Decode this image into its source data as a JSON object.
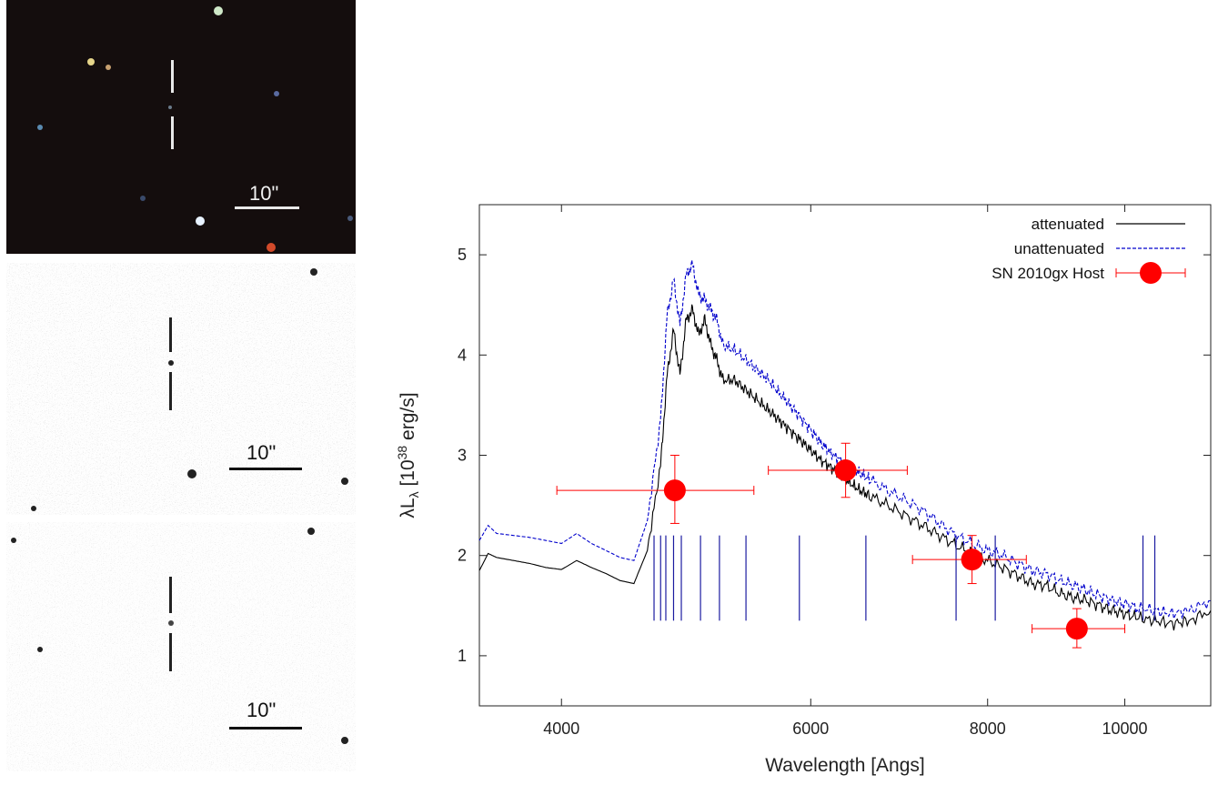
{
  "images": [
    {
      "scale_label": "10\"",
      "style": "color"
    },
    {
      "scale_label": "10\"",
      "style": "grayscale"
    },
    {
      "scale_label": "10\"",
      "style": "grayscale"
    }
  ],
  "chart_data": {
    "type": "line",
    "title": "",
    "xlabel": "Wavelength [Angs]",
    "ylabel_parts": {
      "pre": "λL",
      "sub": "λ",
      "mid": " [10",
      "sup": "38",
      "post": " erg/s]"
    },
    "x_scale": "log",
    "xlim": [
      3500,
      11500
    ],
    "ylim": [
      0.5,
      5.5
    ],
    "x_ticks": [
      4000,
      6000,
      8000,
      10000
    ],
    "y_ticks": [
      1,
      2,
      3,
      4,
      5
    ],
    "legend_position": "top-right",
    "series": [
      {
        "name": "attenuated",
        "style": "solid",
        "color": "#000000",
        "x": [
          3500,
          3550,
          3600,
          3700,
          3800,
          3900,
          4000,
          4100,
          4200,
          4300,
          4400,
          4500,
          4600,
          4700,
          4750,
          4800,
          4850,
          4900,
          4950,
          5000,
          5050,
          5100,
          5150,
          5200,
          5300,
          5400,
          5500,
          5600,
          5700,
          5800,
          5900,
          6000,
          6100,
          6200,
          6300,
          6400,
          6500,
          6600,
          6800,
          7000,
          7200,
          7400,
          7600,
          7800,
          8000,
          8200,
          8400,
          8600,
          8800,
          9000,
          9200,
          9400,
          9600,
          9800,
          10000,
          10200,
          10500,
          10800,
          11100,
          11500
        ],
        "y": [
          1.85,
          2.02,
          1.98,
          1.95,
          1.92,
          1.88,
          1.86,
          1.95,
          1.88,
          1.82,
          1.75,
          1.72,
          2.05,
          2.9,
          3.8,
          4.25,
          3.8,
          4.35,
          4.45,
          4.2,
          4.35,
          4.1,
          3.95,
          3.75,
          3.75,
          3.65,
          3.55,
          3.45,
          3.35,
          3.25,
          3.15,
          3.05,
          2.95,
          2.88,
          2.8,
          2.72,
          2.65,
          2.6,
          2.5,
          2.4,
          2.3,
          2.2,
          2.1,
          2.02,
          1.95,
          1.88,
          1.8,
          1.72,
          1.7,
          1.62,
          1.58,
          1.55,
          1.5,
          1.45,
          1.42,
          1.38,
          1.35,
          1.32,
          1.35,
          1.45
        ]
      },
      {
        "name": "unattenuated",
        "style": "dashed",
        "color": "#0000cc",
        "x": [
          3500,
          3550,
          3600,
          3700,
          3800,
          3900,
          4000,
          4100,
          4200,
          4300,
          4400,
          4500,
          4600,
          4700,
          4750,
          4800,
          4850,
          4900,
          4950,
          5000,
          5050,
          5100,
          5150,
          5200,
          5300,
          5400,
          5500,
          5600,
          5700,
          5800,
          5900,
          6000,
          6100,
          6200,
          6300,
          6400,
          6500,
          6600,
          6800,
          7000,
          7200,
          7400,
          7600,
          7800,
          8000,
          8200,
          8400,
          8600,
          8800,
          9000,
          9200,
          9400,
          9600,
          9800,
          10000,
          10200,
          10500,
          10800,
          11100,
          11500
        ],
        "y": [
          2.15,
          2.3,
          2.22,
          2.2,
          2.18,
          2.15,
          2.12,
          2.22,
          2.12,
          2.05,
          1.98,
          1.95,
          2.35,
          3.35,
          4.4,
          4.75,
          4.3,
          4.8,
          4.9,
          4.6,
          4.55,
          4.45,
          4.35,
          4.1,
          4.05,
          3.95,
          3.85,
          3.75,
          3.62,
          3.5,
          3.38,
          3.25,
          3.12,
          3.02,
          2.95,
          2.88,
          2.82,
          2.76,
          2.65,
          2.55,
          2.45,
          2.32,
          2.2,
          2.12,
          2.05,
          2.0,
          1.92,
          1.85,
          1.82,
          1.75,
          1.7,
          1.65,
          1.6,
          1.55,
          1.52,
          1.48,
          1.45,
          1.42,
          1.45,
          1.55
        ]
      },
      {
        "name": "SN 2010gx Host",
        "style": "points",
        "color": "#ff0000",
        "points": [
          {
            "x": 4810,
            "y": 2.65,
            "xerr": [
              3970,
              5470
            ],
            "yerr": [
              2.32,
              3.0
            ]
          },
          {
            "x": 6350,
            "y": 2.85,
            "xerr": [
              5600,
              7020
            ],
            "yerr": [
              2.58,
              3.12
            ]
          },
          {
            "x": 7800,
            "y": 1.96,
            "xerr": [
              7080,
              8520
            ],
            "yerr": [
              1.72,
              2.2
            ]
          },
          {
            "x": 9250,
            "y": 1.27,
            "xerr": [
              8600,
              10000
            ],
            "yerr": [
              1.08,
              1.47
            ]
          }
        ]
      }
    ]
  }
}
